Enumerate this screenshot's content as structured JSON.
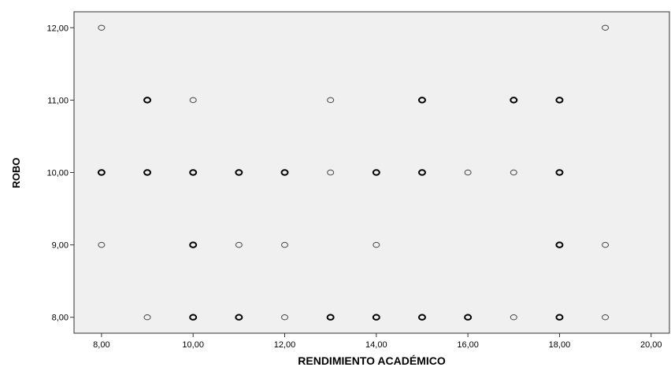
{
  "chart_data": {
    "type": "scatter",
    "xlabel": "RENDIMIENTO ACADÉMICO",
    "ylabel": "ROBO",
    "xlim": [
      7.4,
      20.4
    ],
    "ylim": [
      7.78,
      12.22
    ],
    "x_ticks": [
      "8,00",
      "10,00",
      "12,00",
      "14,00",
      "16,00",
      "18,00",
      "20,00"
    ],
    "y_ticks": [
      "8,00",
      "9,00",
      "10,00",
      "11,00",
      "12,00"
    ],
    "grid": false,
    "background_color": "#f0f0f0",
    "marker_color": "#000000",
    "points": [
      {
        "x": 8,
        "y": 12,
        "count": 1
      },
      {
        "x": 19,
        "y": 12,
        "count": 1
      },
      {
        "x": 9,
        "y": 11,
        "count": 2
      },
      {
        "x": 10,
        "y": 11,
        "count": 1
      },
      {
        "x": 13,
        "y": 11,
        "count": 1
      },
      {
        "x": 15,
        "y": 11,
        "count": 2
      },
      {
        "x": 17,
        "y": 11,
        "count": 2
      },
      {
        "x": 18,
        "y": 11,
        "count": 2
      },
      {
        "x": 8,
        "y": 10,
        "count": 2
      },
      {
        "x": 9,
        "y": 10,
        "count": 2
      },
      {
        "x": 10,
        "y": 10,
        "count": 2
      },
      {
        "x": 11,
        "y": 10,
        "count": 2
      },
      {
        "x": 12,
        "y": 10,
        "count": 2
      },
      {
        "x": 13,
        "y": 10,
        "count": 1
      },
      {
        "x": 14,
        "y": 10,
        "count": 2
      },
      {
        "x": 15,
        "y": 10,
        "count": 2
      },
      {
        "x": 16,
        "y": 10,
        "count": 1
      },
      {
        "x": 17,
        "y": 10,
        "count": 1
      },
      {
        "x": 18,
        "y": 10,
        "count": 2
      },
      {
        "x": 8,
        "y": 9,
        "count": 1
      },
      {
        "x": 10,
        "y": 9,
        "count": 2
      },
      {
        "x": 11,
        "y": 9,
        "count": 1
      },
      {
        "x": 12,
        "y": 9,
        "count": 1
      },
      {
        "x": 14,
        "y": 9,
        "count": 1
      },
      {
        "x": 18,
        "y": 9,
        "count": 2
      },
      {
        "x": 19,
        "y": 9,
        "count": 1
      },
      {
        "x": 9,
        "y": 8,
        "count": 1
      },
      {
        "x": 10,
        "y": 8,
        "count": 2
      },
      {
        "x": 11,
        "y": 8,
        "count": 2
      },
      {
        "x": 12,
        "y": 8,
        "count": 1
      },
      {
        "x": 13,
        "y": 8,
        "count": 2
      },
      {
        "x": 14,
        "y": 8,
        "count": 2
      },
      {
        "x": 15,
        "y": 8,
        "count": 2
      },
      {
        "x": 16,
        "y": 8,
        "count": 2
      },
      {
        "x": 17,
        "y": 8,
        "count": 1
      },
      {
        "x": 18,
        "y": 8,
        "count": 2
      },
      {
        "x": 19,
        "y": 8,
        "count": 1
      }
    ]
  }
}
